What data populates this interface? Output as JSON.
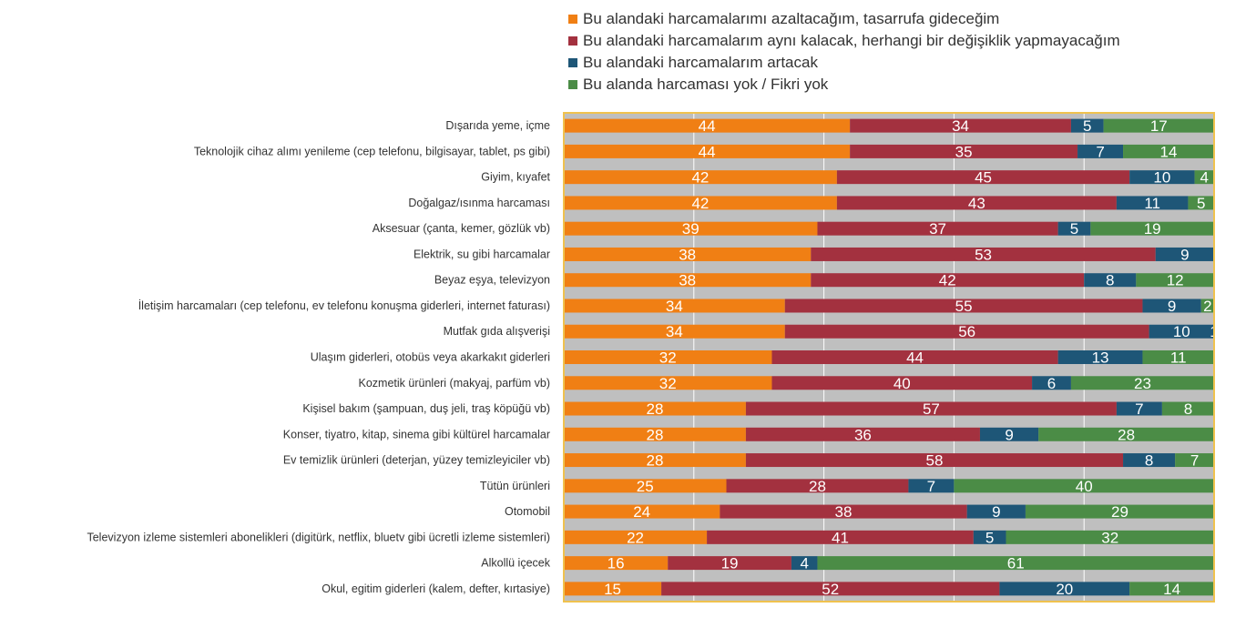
{
  "chart_data": {
    "type": "bar",
    "orientation": "horizontal",
    "stacked": true,
    "title": "",
    "xlabel": "",
    "ylabel": "",
    "xlim": [
      0,
      100
    ],
    "grid": true,
    "legend_position": "top",
    "categories": [
      "Dışarıda yeme, içme",
      "Teknolojik cihaz alımı yenileme (cep telefonu, bilgisayar, tablet, ps gibi)",
      "Giyim, kıyafet",
      "Doğalgaz/ısınma harcaması",
      "Aksesuar (çanta, kemer, gözlük vb)",
      "Elektrik, su gibi harcamalar",
      "Beyaz eşya, televizyon",
      "İletişim harcamaları (cep telefonu, ev telefonu konuşma giderleri, internet faturası)",
      "Mutfak gıda alışverişi",
      "Ulaşım giderleri, otobüs veya akarkakıt giderleri",
      "Kozmetik ürünleri (makyaj, parfüm vb)",
      "Kişisel bakım (şampuan, duş jeli, traş köpüğü vb)",
      "Konser, tiyatro, kitap, sinema gibi kültürel harcamalar",
      "Ev temizlik ürünleri (deterjan, yüzey temizleyiciler vb)",
      "Tütün ürünleri",
      "Otomobil",
      "Televizyon izleme sistemleri abonelikleri (digitürk, netflix, bluetv gibi ücretli izleme sistemleri)",
      "Alkollü içecek",
      "Okul, egitim giderleri (kalem, defter, kırtasiye)"
    ],
    "series": [
      {
        "name": "Bu alandaki harcamalarımı azaltacağım, tasarrufa gideceğim",
        "color": "#F07F14",
        "values": [
          44,
          44,
          42,
          42,
          39,
          38,
          38,
          34,
          34,
          32,
          32,
          28,
          28,
          28,
          25,
          24,
          22,
          16,
          15
        ]
      },
      {
        "name": "Bu alandaki harcamalarım aynı kalacak, herhangi bir değişiklik yapmayacağım",
        "color": "#A3313F",
        "values": [
          34,
          35,
          45,
          43,
          37,
          53,
          42,
          55,
          56,
          44,
          40,
          57,
          36,
          58,
          28,
          38,
          41,
          19,
          52
        ]
      },
      {
        "name": "Bu alandaki harcamalarım artacak",
        "color": "#1E5677",
        "values": [
          5,
          7,
          10,
          11,
          5,
          9,
          8,
          9,
          10,
          13,
          6,
          7,
          9,
          8,
          7,
          9,
          5,
          4,
          20
        ]
      },
      {
        "name": "Bu alanda harcaması yok  / Fikri yok",
        "color": "#4B8C46",
        "values": [
          17,
          14,
          4,
          5,
          19,
          null,
          12,
          2,
          1,
          11,
          23,
          8,
          28,
          7,
          40,
          29,
          32,
          61,
          14
        ]
      }
    ],
    "plot_background": "#BFBFBF",
    "frame_color": "#F0C24E"
  }
}
